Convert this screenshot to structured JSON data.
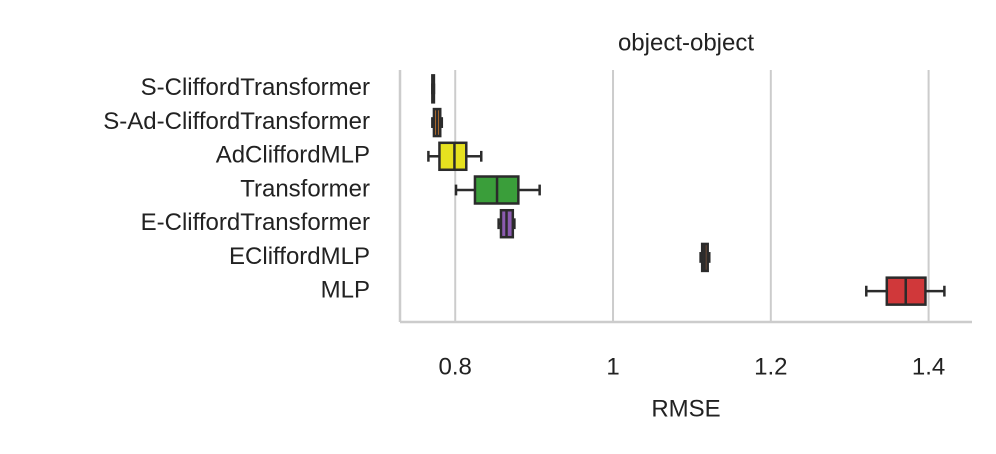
{
  "chart_data": {
    "type": "box",
    "title": "object-object",
    "xlabel": "RMSE",
    "categories": [
      "S-CliffordTransformer",
      "S-Ad-CliffordTransformer",
      "AdCliffordMLP",
      "Transformer",
      "E-CliffordTransformer",
      "ECliffordMLP",
      "MLP"
    ],
    "min": [
      0.771,
      0.771,
      0.766,
      0.801,
      0.855,
      1.111,
      1.321
    ],
    "q1": [
      0.771,
      0.773,
      0.78,
      0.825,
      0.858,
      1.113,
      1.347
    ],
    "median": [
      0.772,
      0.777,
      0.799,
      0.853,
      0.865,
      1.116,
      1.371
    ],
    "q3": [
      0.773,
      0.781,
      0.814,
      0.88,
      0.873,
      1.12,
      1.396
    ],
    "max": [
      0.773,
      0.783,
      0.833,
      0.907,
      0.875,
      1.122,
      1.42
    ],
    "colors": [
      "#3a6fb0",
      "#e8852d",
      "#e6e11f",
      "#3a9e3a",
      "#8b5bb0",
      "#8c5a3c",
      "#d0383a"
    ],
    "xlim": [
      0.73,
      1.455
    ],
    "xticks": [
      0.8,
      1.0,
      1.2,
      1.4
    ],
    "grid": true
  }
}
